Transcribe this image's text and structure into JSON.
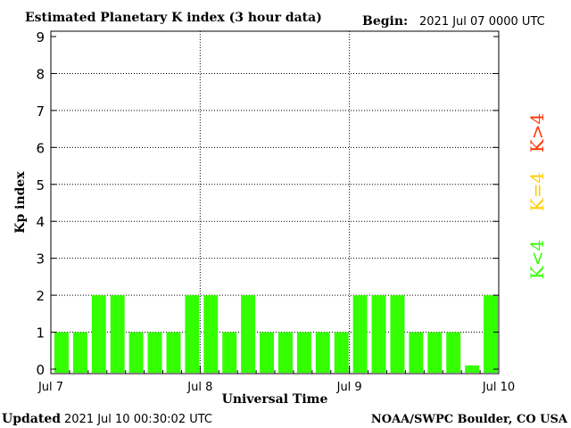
{
  "header": {
    "title": "Estimated Planetary K index (3 hour data)",
    "begin_label": "Begin:",
    "begin_value": "2021 Jul 07 0000 UTC"
  },
  "footer": {
    "updated_label": "Updated",
    "updated_value": "2021 Jul 10 00:30:02 UTC",
    "source": "NOAA/SWPC Boulder, CO USA"
  },
  "legend": {
    "items": [
      {
        "label": "K>4",
        "color": "#ff3300"
      },
      {
        "label": "K=4",
        "color": "#ffcc00"
      },
      {
        "label": "K<4",
        "color": "#33ff00"
      }
    ]
  },
  "chart_data": {
    "type": "bar",
    "ylabel": "Kp index",
    "xlabel": "Universal Time",
    "ylim": [
      0,
      9
    ],
    "yticks": [
      "0",
      "1",
      "2",
      "3",
      "4",
      "5",
      "6",
      "7",
      "8",
      "9"
    ],
    "xtick_labels": [
      "Jul 7",
      "Jul 8",
      "Jul 9",
      "Jul 10"
    ],
    "grid": true,
    "bar_color": "#33ff00",
    "values": [
      1,
      1,
      2,
      2,
      1,
      1,
      1,
      2,
      2,
      1,
      2,
      1,
      1,
      1,
      1,
      1,
      2,
      2,
      2,
      1,
      1,
      1,
      0.1,
      2
    ]
  }
}
